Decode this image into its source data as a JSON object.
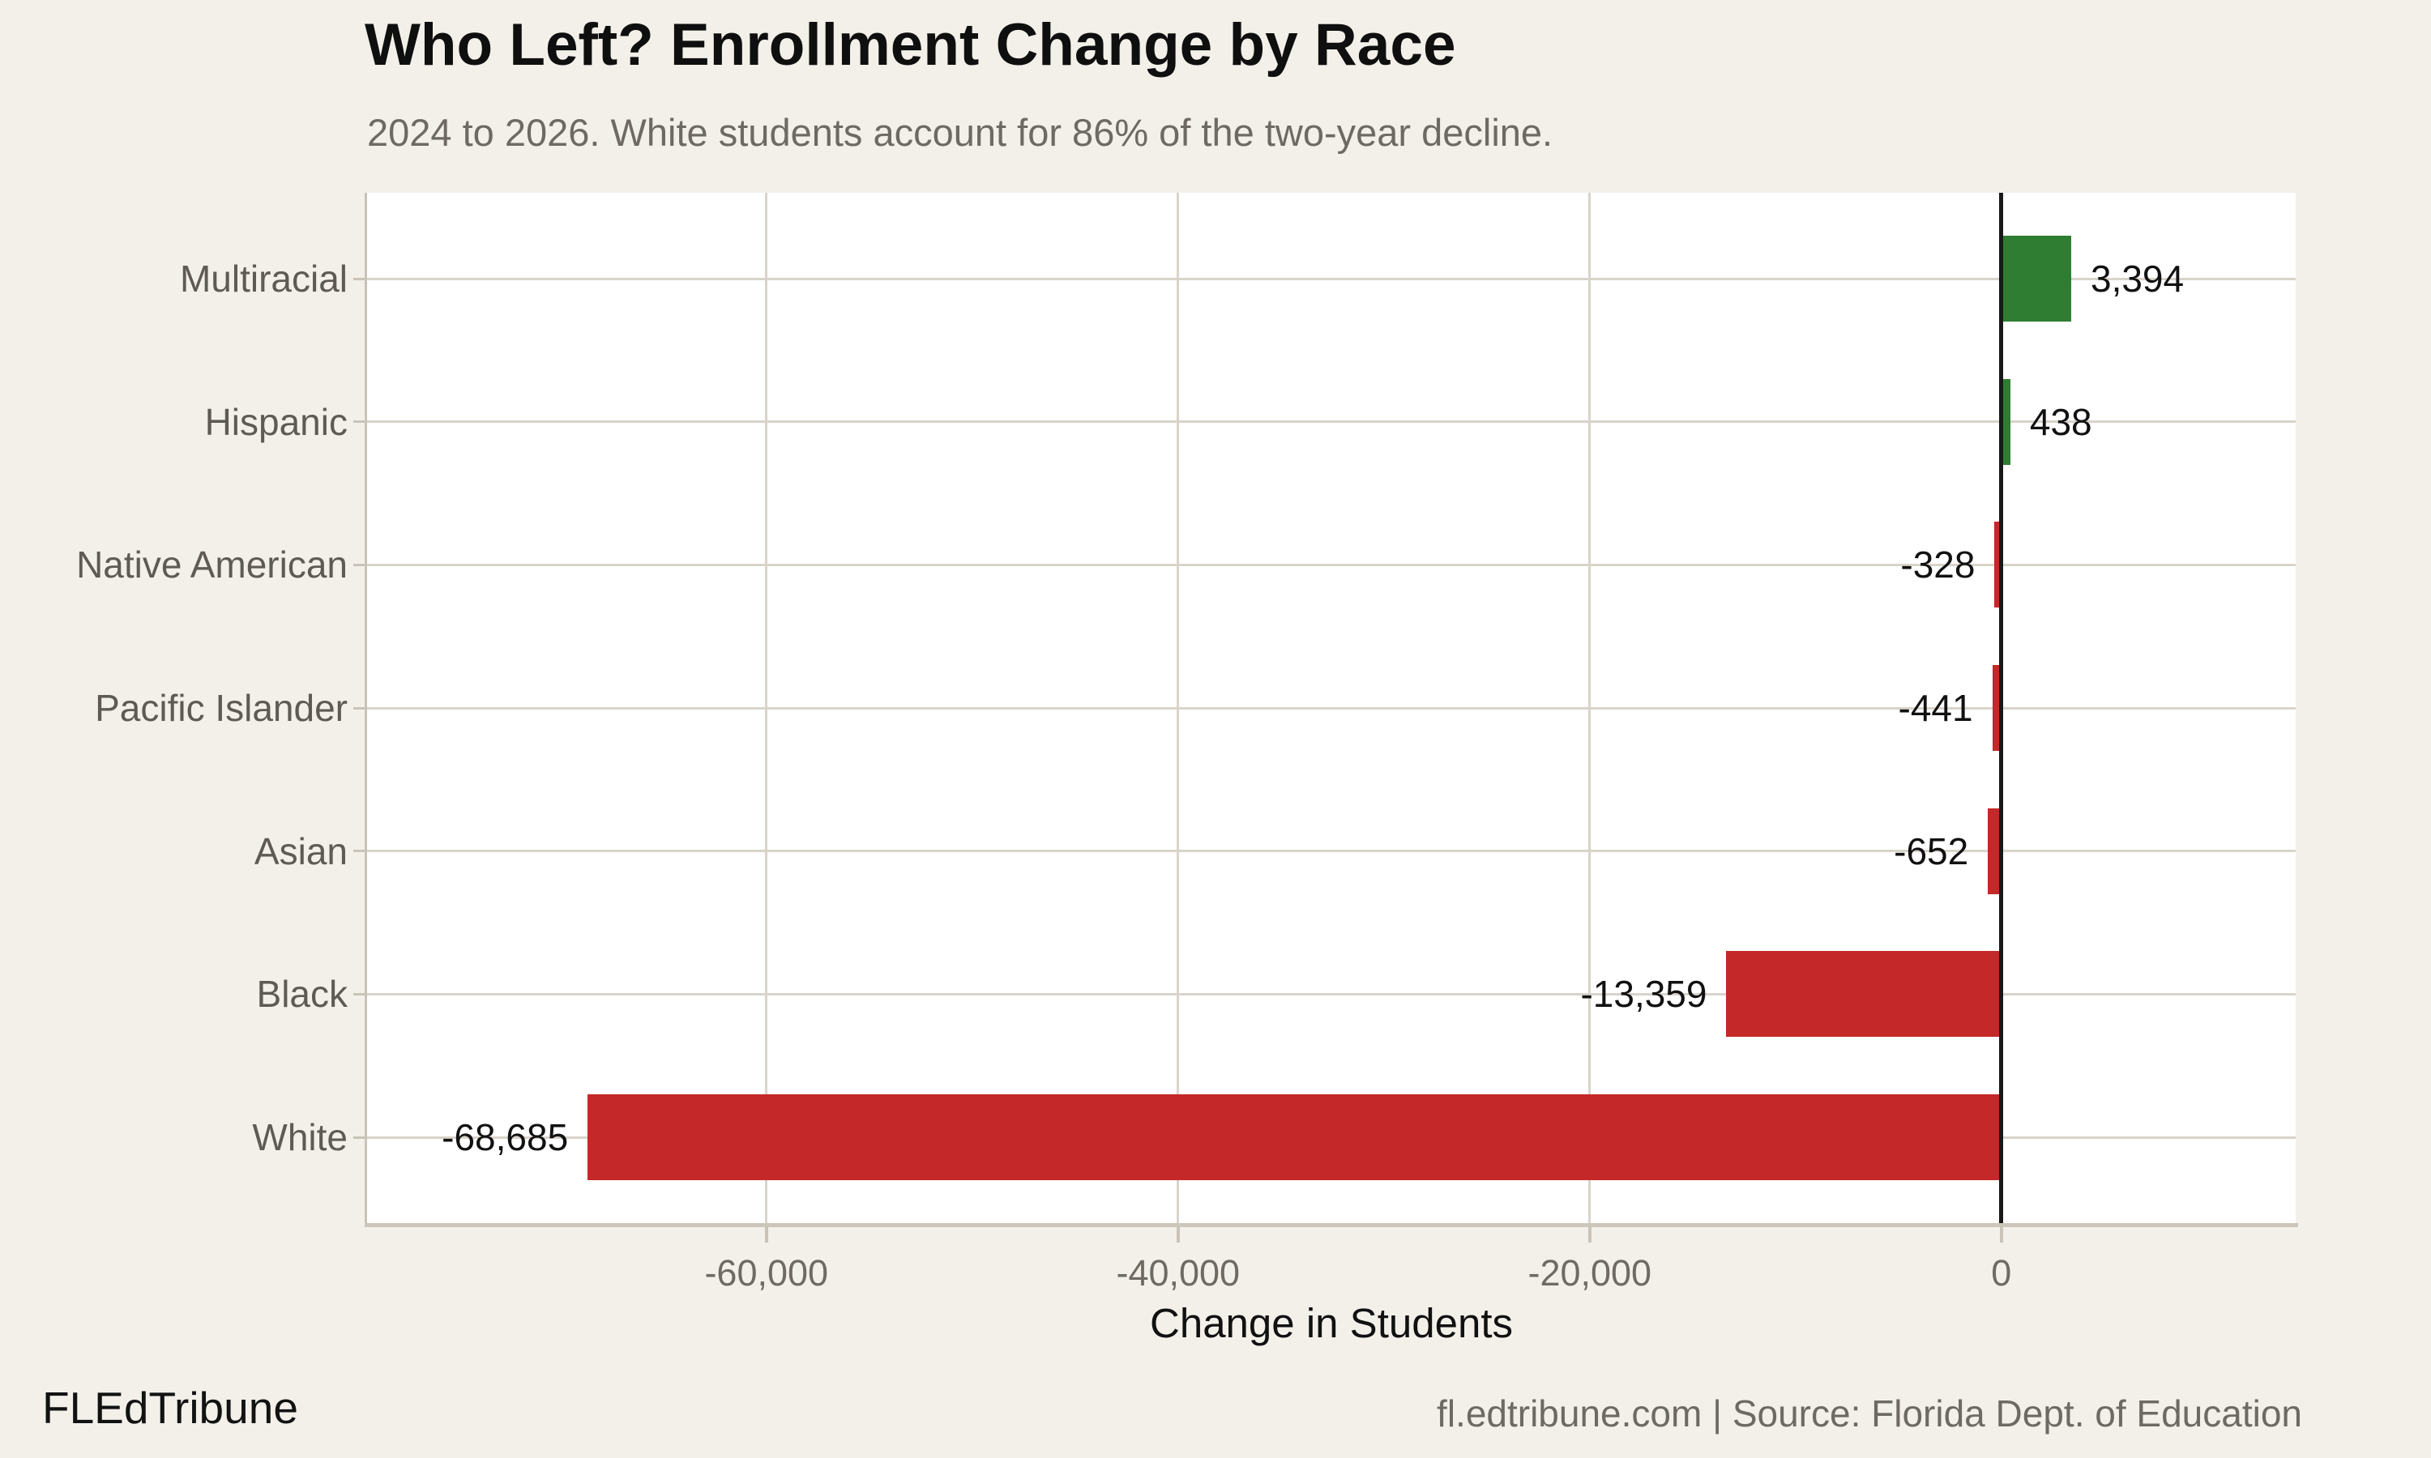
{
  "title": "Who Left? Enrollment Change by Race",
  "subtitle": "2024 to 2026. White students account for 86% of the two-year decline.",
  "footer": {
    "brand": "FLEdTribune",
    "source": "fl.edtribune.com | Source: Florida Dept. of Education"
  },
  "colors": {
    "background": "#f3f0ea",
    "plot_background": "#ffffff",
    "grid": "#d9d4cb",
    "axis": "#c9c3b8",
    "zero_line": "#191919",
    "positive_bar": "#2e7d32",
    "negative_bar": "#c52828",
    "title_text": "#0f0f0f",
    "muted_text": "#6e6a63",
    "category_text": "#5f5b54"
  },
  "chart_data": {
    "type": "bar",
    "orientation": "horizontal",
    "title": "Who Left? Enrollment Change by Race",
    "subtitle": "2024 to 2026. White students account for 86% of the two-year decline.",
    "xlabel": "Change in Students",
    "categories": [
      "Multiracial",
      "Hispanic",
      "Native American",
      "Pacific Islander",
      "Asian",
      "Black",
      "White"
    ],
    "values": [
      3394,
      438,
      -328,
      -441,
      -652,
      -13359,
      -68685
    ],
    "value_labels": [
      "3,394",
      "438",
      "-328",
      "-441",
      "-652",
      "-13,359",
      "-68,685"
    ],
    "x_ticks": [
      {
        "value": -60000,
        "label": "-60,000"
      },
      {
        "value": -40000,
        "label": "-40,000"
      },
      {
        "value": -20000,
        "label": "-20,000"
      },
      {
        "value": 0,
        "label": "0"
      }
    ],
    "xlim": [
      -79400,
      14300
    ],
    "grid": true,
    "legend": false,
    "bar_color_rule": "green if positive, red if negative"
  }
}
